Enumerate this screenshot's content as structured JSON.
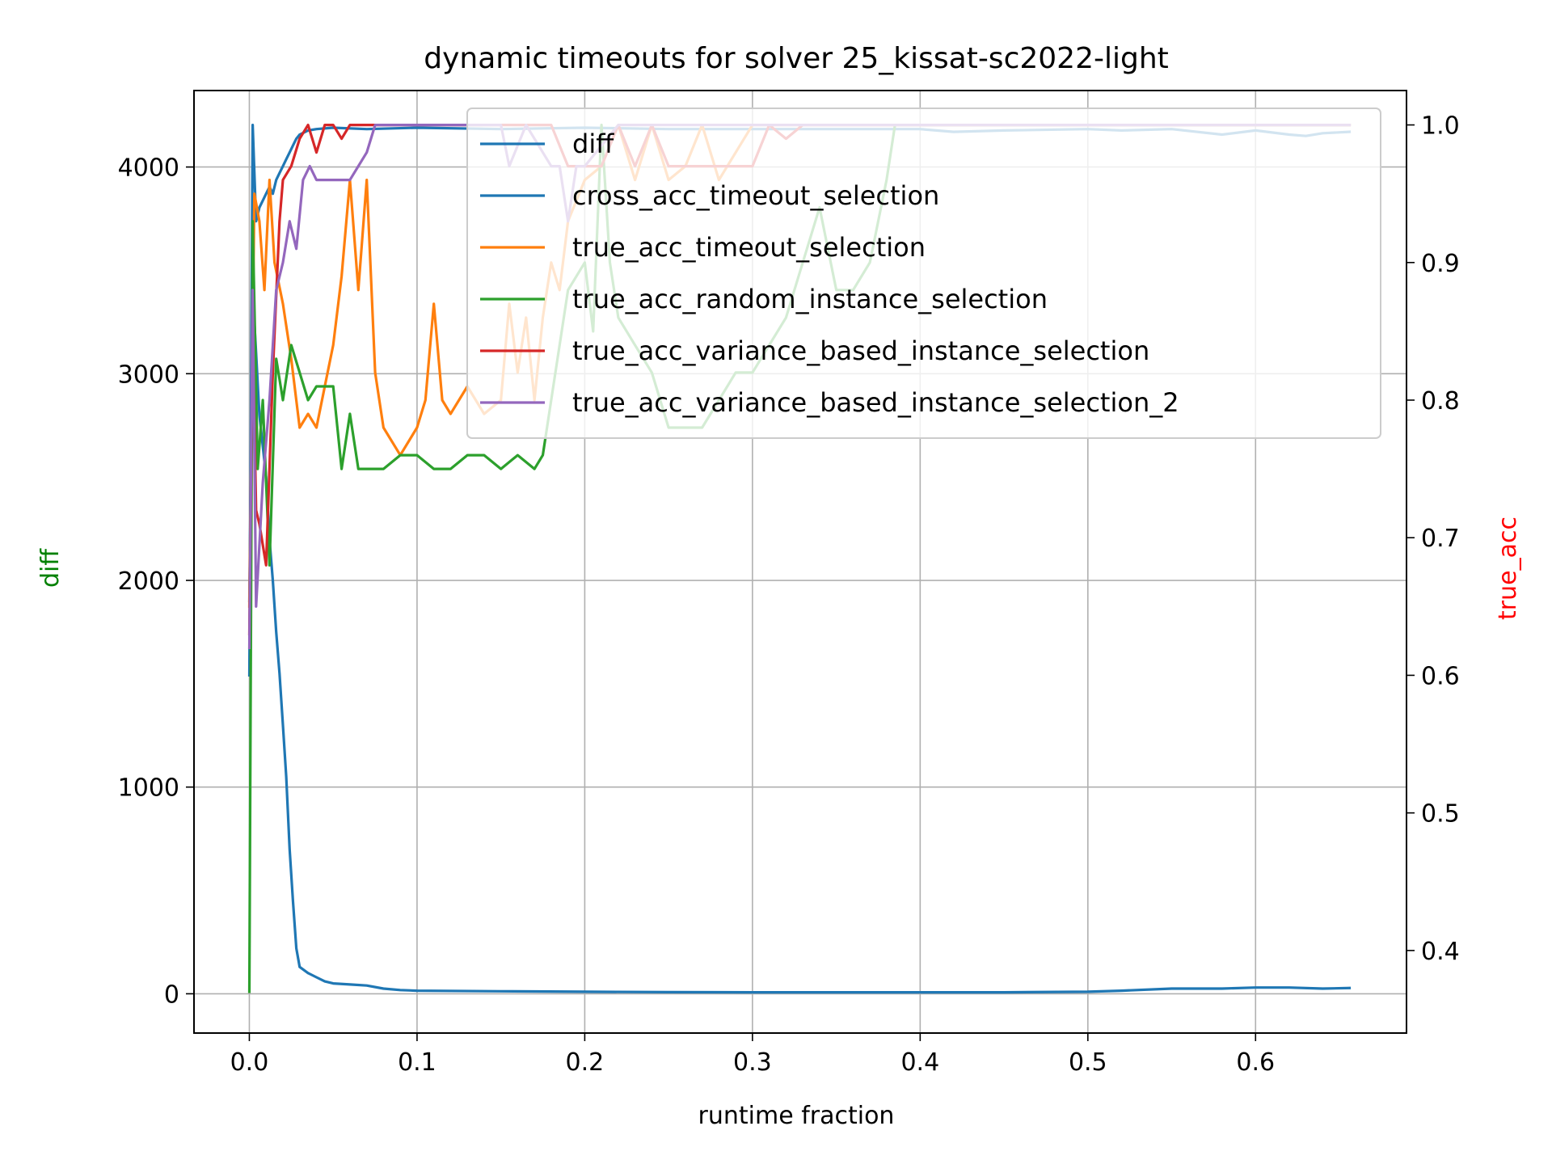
{
  "chart_data": {
    "type": "line",
    "title": "dynamic timeouts for solver 25_kissat-sc2022-light",
    "xlabel": "runtime fraction",
    "ylabel_left": "diff",
    "ylabel_right": "true_acc",
    "ylabel_left_color": "#008000",
    "ylabel_right_color": "#ff0000",
    "xlim": [
      -0.033,
      0.69
    ],
    "ylim_left": [
      -190,
      4370
    ],
    "ylim_right": [
      0.34,
      1.025
    ],
    "x_ticks": [
      0.0,
      0.1,
      0.2,
      0.3,
      0.4,
      0.5,
      0.6
    ],
    "x_tick_labels": [
      "0.0",
      "0.1",
      "0.2",
      "0.3",
      "0.4",
      "0.5",
      "0.6"
    ],
    "y_left_ticks": [
      0,
      1000,
      2000,
      3000,
      4000
    ],
    "y_left_tick_labels": [
      "0",
      "1000",
      "2000",
      "3000",
      "4000"
    ],
    "y_right_ticks": [
      0.4,
      0.5,
      0.6,
      0.7,
      0.8,
      0.9,
      1.0
    ],
    "y_right_tick_labels": [
      "0.4",
      "0.5",
      "0.6",
      "0.7",
      "0.8",
      "0.9",
      "1.0"
    ],
    "grid": true,
    "legend_position": "top-right",
    "series": [
      {
        "name": "diff",
        "axis": "left",
        "color": "#1f77b4",
        "points": [
          [
            0,
            1900
          ],
          [
            0.002,
            3400
          ],
          [
            0.004,
            3100
          ],
          [
            0.006,
            2800
          ],
          [
            0.008,
            2650
          ],
          [
            0.01,
            2500
          ],
          [
            0.012,
            2200
          ],
          [
            0.014,
            2000
          ],
          [
            0.016,
            1750
          ],
          [
            0.018,
            1550
          ],
          [
            0.02,
            1300
          ],
          [
            0.022,
            1050
          ],
          [
            0.024,
            700
          ],
          [
            0.026,
            450
          ],
          [
            0.028,
            220
          ],
          [
            0.03,
            130
          ],
          [
            0.035,
            100
          ],
          [
            0.04,
            80
          ],
          [
            0.045,
            60
          ],
          [
            0.05,
            50
          ],
          [
            0.06,
            45
          ],
          [
            0.07,
            40
          ],
          [
            0.08,
            25
          ],
          [
            0.09,
            18
          ],
          [
            0.1,
            15
          ],
          [
            0.15,
            12
          ],
          [
            0.2,
            10
          ],
          [
            0.25,
            8
          ],
          [
            0.3,
            7
          ],
          [
            0.35,
            7
          ],
          [
            0.4,
            7
          ],
          [
            0.45,
            7
          ],
          [
            0.5,
            10
          ],
          [
            0.52,
            15
          ],
          [
            0.55,
            25
          ],
          [
            0.58,
            25
          ],
          [
            0.6,
            30
          ],
          [
            0.62,
            30
          ],
          [
            0.64,
            25
          ],
          [
            0.656,
            28
          ]
        ]
      },
      {
        "name": "cross_acc_timeout_selection",
        "axis": "right",
        "color": "#1f77b4",
        "points": [
          [
            0,
            0.6
          ],
          [
            0.002,
            1.0
          ],
          [
            0.004,
            0.93
          ],
          [
            0.006,
            0.94
          ],
          [
            0.008,
            0.945
          ],
          [
            0.01,
            0.95
          ],
          [
            0.012,
            0.955
          ],
          [
            0.014,
            0.95
          ],
          [
            0.016,
            0.96
          ],
          [
            0.018,
            0.965
          ],
          [
            0.02,
            0.97
          ],
          [
            0.022,
            0.975
          ],
          [
            0.024,
            0.98
          ],
          [
            0.026,
            0.985
          ],
          [
            0.028,
            0.99
          ],
          [
            0.03,
            0.993
          ],
          [
            0.035,
            0.996
          ],
          [
            0.04,
            0.997
          ],
          [
            0.05,
            0.998
          ],
          [
            0.07,
            0.997
          ],
          [
            0.1,
            0.998
          ],
          [
            0.15,
            0.997
          ],
          [
            0.2,
            0.998
          ],
          [
            0.25,
            0.997
          ],
          [
            0.3,
            0.997
          ],
          [
            0.35,
            0.997
          ],
          [
            0.4,
            0.997
          ],
          [
            0.42,
            0.995
          ],
          [
            0.45,
            0.996
          ],
          [
            0.5,
            0.997
          ],
          [
            0.52,
            0.996
          ],
          [
            0.55,
            0.997
          ],
          [
            0.58,
            0.993
          ],
          [
            0.6,
            0.996
          ],
          [
            0.62,
            0.993
          ],
          [
            0.63,
            0.992
          ],
          [
            0.64,
            0.994
          ],
          [
            0.656,
            0.995
          ]
        ]
      },
      {
        "name": "true_acc_timeout_selection",
        "axis": "right",
        "color": "#ff7f0e",
        "points": [
          [
            0,
            0.65
          ],
          [
            0.003,
            0.95
          ],
          [
            0.006,
            0.93
          ],
          [
            0.009,
            0.88
          ],
          [
            0.012,
            0.96
          ],
          [
            0.015,
            0.9
          ],
          [
            0.02,
            0.87
          ],
          [
            0.025,
            0.83
          ],
          [
            0.03,
            0.78
          ],
          [
            0.035,
            0.79
          ],
          [
            0.04,
            0.78
          ],
          [
            0.045,
            0.81
          ],
          [
            0.05,
            0.84
          ],
          [
            0.055,
            0.89
          ],
          [
            0.06,
            0.96
          ],
          [
            0.065,
            0.88
          ],
          [
            0.07,
            0.96
          ],
          [
            0.075,
            0.82
          ],
          [
            0.08,
            0.78
          ],
          [
            0.09,
            0.76
          ],
          [
            0.1,
            0.78
          ],
          [
            0.105,
            0.8
          ],
          [
            0.11,
            0.87
          ],
          [
            0.115,
            0.8
          ],
          [
            0.12,
            0.79
          ],
          [
            0.13,
            0.81
          ],
          [
            0.14,
            0.79
          ],
          [
            0.15,
            0.8
          ],
          [
            0.155,
            0.87
          ],
          [
            0.16,
            0.82
          ],
          [
            0.165,
            0.86
          ],
          [
            0.17,
            0.8
          ],
          [
            0.175,
            0.86
          ],
          [
            0.18,
            0.9
          ],
          [
            0.185,
            0.88
          ],
          [
            0.19,
            0.93
          ],
          [
            0.2,
            0.96
          ],
          [
            0.21,
            0.97
          ],
          [
            0.22,
            1.0
          ],
          [
            0.23,
            0.96
          ],
          [
            0.24,
            1.0
          ],
          [
            0.25,
            0.96
          ],
          [
            0.26,
            0.97
          ],
          [
            0.27,
            1.0
          ],
          [
            0.28,
            0.96
          ],
          [
            0.3,
            1.0
          ],
          [
            0.35,
            1.0
          ],
          [
            0.4,
            1.0
          ],
          [
            0.5,
            1.0
          ],
          [
            0.6,
            1.0
          ],
          [
            0.656,
            1.0
          ]
        ]
      },
      {
        "name": "true_acc_random_instance_selection",
        "axis": "right",
        "color": "#2ca02c",
        "points": [
          [
            0,
            0.37
          ],
          [
            0.002,
            0.93
          ],
          [
            0.005,
            0.75
          ],
          [
            0.008,
            0.8
          ],
          [
            0.012,
            0.68
          ],
          [
            0.016,
            0.83
          ],
          [
            0.02,
            0.8
          ],
          [
            0.025,
            0.84
          ],
          [
            0.03,
            0.82
          ],
          [
            0.035,
            0.8
          ],
          [
            0.04,
            0.81
          ],
          [
            0.05,
            0.81
          ],
          [
            0.055,
            0.75
          ],
          [
            0.06,
            0.79
          ],
          [
            0.065,
            0.75
          ],
          [
            0.07,
            0.75
          ],
          [
            0.08,
            0.75
          ],
          [
            0.09,
            0.76
          ],
          [
            0.1,
            0.76
          ],
          [
            0.11,
            0.75
          ],
          [
            0.12,
            0.75
          ],
          [
            0.13,
            0.76
          ],
          [
            0.14,
            0.76
          ],
          [
            0.15,
            0.75
          ],
          [
            0.16,
            0.76
          ],
          [
            0.17,
            0.75
          ],
          [
            0.175,
            0.76
          ],
          [
            0.18,
            0.8
          ],
          [
            0.185,
            0.84
          ],
          [
            0.19,
            0.88
          ],
          [
            0.2,
            0.9
          ],
          [
            0.205,
            0.85
          ],
          [
            0.21,
            1.0
          ],
          [
            0.215,
            0.9
          ],
          [
            0.22,
            0.86
          ],
          [
            0.23,
            0.84
          ],
          [
            0.24,
            0.82
          ],
          [
            0.25,
            0.78
          ],
          [
            0.26,
            0.78
          ],
          [
            0.27,
            0.78
          ],
          [
            0.28,
            0.8
          ],
          [
            0.29,
            0.82
          ],
          [
            0.3,
            0.82
          ],
          [
            0.31,
            0.84
          ],
          [
            0.32,
            0.86
          ],
          [
            0.33,
            0.9
          ],
          [
            0.34,
            0.94
          ],
          [
            0.35,
            0.88
          ],
          [
            0.36,
            0.88
          ],
          [
            0.37,
            0.9
          ],
          [
            0.38,
            0.96
          ],
          [
            0.385,
            1.0
          ],
          [
            0.4,
            1.0
          ],
          [
            0.5,
            1.0
          ],
          [
            0.6,
            1.0
          ],
          [
            0.656,
            1.0
          ]
        ]
      },
      {
        "name": "true_acc_variance_based_instance_selection",
        "axis": "right",
        "color": "#d62728",
        "points": [
          [
            0,
            0.63
          ],
          [
            0.002,
            0.85
          ],
          [
            0.004,
            0.72
          ],
          [
            0.006,
            0.71
          ],
          [
            0.01,
            0.68
          ],
          [
            0.014,
            0.82
          ],
          [
            0.018,
            0.93
          ],
          [
            0.02,
            0.96
          ],
          [
            0.025,
            0.97
          ],
          [
            0.03,
            0.99
          ],
          [
            0.035,
            1.0
          ],
          [
            0.04,
            0.98
          ],
          [
            0.045,
            1.0
          ],
          [
            0.05,
            1.0
          ],
          [
            0.055,
            0.99
          ],
          [
            0.06,
            1.0
          ],
          [
            0.07,
            1.0
          ],
          [
            0.1,
            1.0
          ],
          [
            0.15,
            1.0
          ],
          [
            0.18,
            1.0
          ],
          [
            0.19,
            0.97
          ],
          [
            0.21,
            0.97
          ],
          [
            0.22,
            1.0
          ],
          [
            0.23,
            0.97
          ],
          [
            0.24,
            1.0
          ],
          [
            0.25,
            0.97
          ],
          [
            0.28,
            0.97
          ],
          [
            0.3,
            0.97
          ],
          [
            0.31,
            1.0
          ],
          [
            0.32,
            0.99
          ],
          [
            0.33,
            1.0
          ],
          [
            0.4,
            1.0
          ],
          [
            0.5,
            1.0
          ],
          [
            0.6,
            1.0
          ],
          [
            0.656,
            1.0
          ]
        ]
      },
      {
        "name": "true_acc_variance_based_instance_selection_2",
        "axis": "right",
        "color": "#9467bd",
        "points": [
          [
            0,
            0.62
          ],
          [
            0.002,
            0.88
          ],
          [
            0.004,
            0.65
          ],
          [
            0.008,
            0.74
          ],
          [
            0.012,
            0.8
          ],
          [
            0.016,
            0.88
          ],
          [
            0.02,
            0.9
          ],
          [
            0.024,
            0.93
          ],
          [
            0.028,
            0.91
          ],
          [
            0.032,
            0.96
          ],
          [
            0.036,
            0.97
          ],
          [
            0.04,
            0.96
          ],
          [
            0.05,
            0.96
          ],
          [
            0.06,
            0.96
          ],
          [
            0.07,
            0.98
          ],
          [
            0.075,
            1.0
          ],
          [
            0.1,
            1.0
          ],
          [
            0.15,
            1.0
          ],
          [
            0.155,
            0.97
          ],
          [
            0.165,
            1.0
          ],
          [
            0.18,
            0.97
          ],
          [
            0.185,
            0.97
          ],
          [
            0.19,
            0.93
          ],
          [
            0.195,
            0.97
          ],
          [
            0.2,
            0.97
          ],
          [
            0.22,
            1.0
          ],
          [
            0.3,
            1.0
          ],
          [
            0.4,
            1.0
          ],
          [
            0.5,
            1.0
          ],
          [
            0.6,
            1.0
          ],
          [
            0.656,
            1.0
          ]
        ]
      }
    ]
  }
}
